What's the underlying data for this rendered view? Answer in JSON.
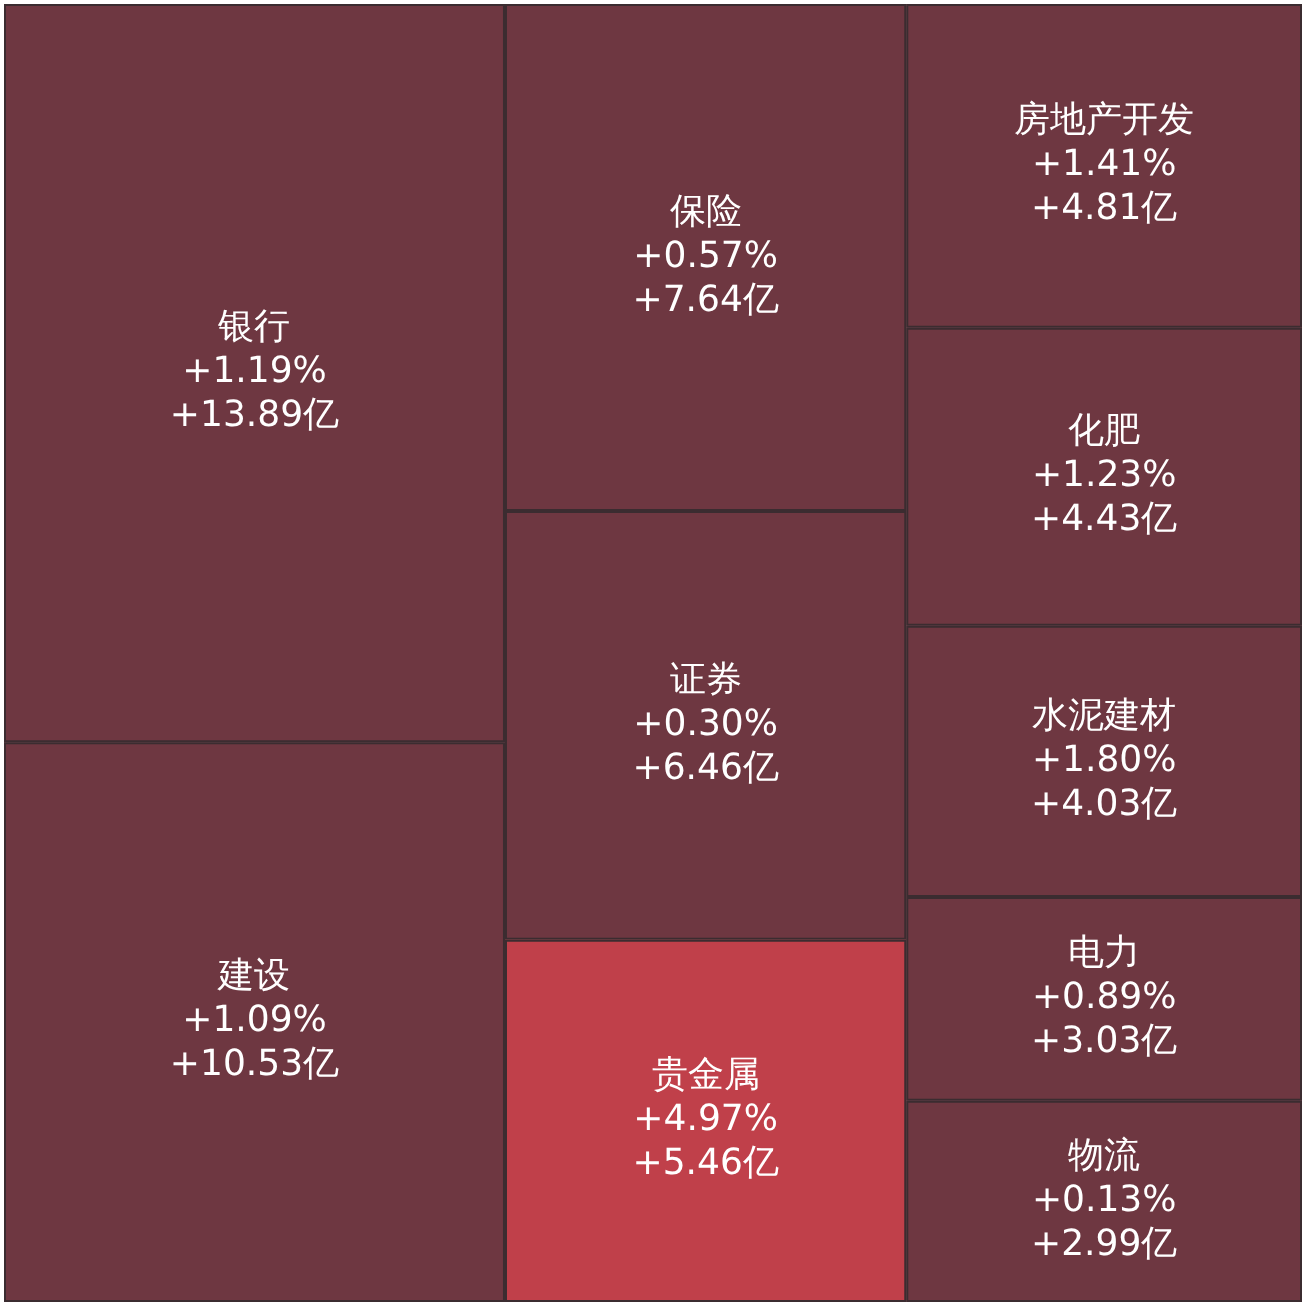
{
  "chart_data": {
    "type": "other",
    "categories": [
      "银行",
      "建设",
      "保险",
      "证券",
      "贵金属",
      "房地产开发",
      "化肥",
      "水泥建材",
      "电力",
      "物流"
    ],
    "series": [
      {
        "values": [
          13.89,
          10.53,
          7.64,
          6.46,
          5.46,
          4.81,
          4.43,
          4.03,
          3.03,
          2.99
        ],
        "value_labels": [
          "+1.19%\n+13.89亿",
          "+1.09%\n+10.53亿",
          "+0.57%\n+7.64亿",
          "+0.30%\n+6.46亿",
          "+4.97%\n+5.46亿",
          "+1.41%\n+4.81亿",
          "+1.23%\n+4.43亿",
          "+1.80%\n+4.03亿",
          "+0.89%\n+3.03亿",
          "+0.13%\n+2.99亿"
        ],
        "colors": [
          "#6e3741",
          "#6e3741",
          "#6e3741",
          "#6e3741",
          "#c0404a",
          "#6e3741",
          "#6e3741",
          "#6e3741",
          "#6e3741",
          "#6e3741"
        ]
      }
    ]
  }
}
